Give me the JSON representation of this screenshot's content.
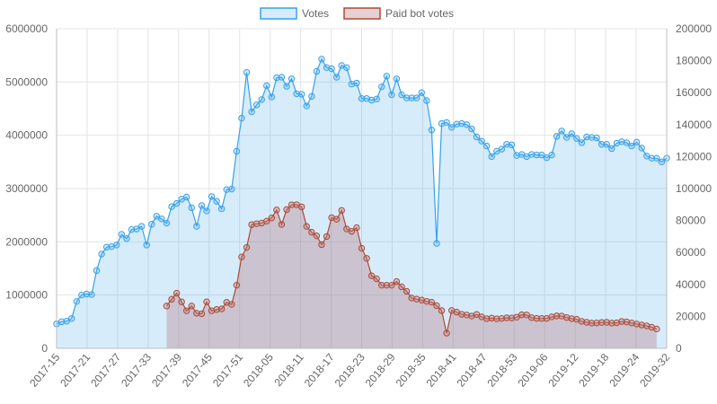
{
  "chart_data": {
    "type": "line",
    "title": "",
    "legend": {
      "position": "top",
      "entries": [
        "Votes",
        "Paid bot votes"
      ]
    },
    "grid": true,
    "x_tick_labels": [
      "2017-15",
      "2017-21",
      "2017-27",
      "2017-33",
      "2017-39",
      "2017-45",
      "2017-51",
      "2018-05",
      "2018-11",
      "2018-17",
      "2018-23",
      "2018-29",
      "2018-35",
      "2018-41",
      "2018-47",
      "2018-53",
      "2019-06",
      "2019-12",
      "2019-18",
      "2019-24",
      "2019-32"
    ],
    "x_first_week": "2017-15",
    "x_last_week": "2019-32",
    "y_left": {
      "min": 0,
      "max": 6000000,
      "step": 1000000,
      "ticks": [
        "0",
        "1000000",
        "2000000",
        "3000000",
        "4000000",
        "5000000",
        "6000000"
      ]
    },
    "y_right": {
      "min": 0,
      "max": 200000,
      "step": 20000,
      "ticks": [
        "0",
        "20000",
        "40000",
        "60000",
        "80000",
        "100000",
        "120000",
        "140000",
        "160000",
        "180000",
        "200000"
      ]
    },
    "series": [
      {
        "name": "Votes",
        "axis": "left",
        "color": "#36a2eb",
        "fill": "rgba(54,162,235,0.2)",
        "values": [
          460000,
          500000,
          510000,
          560000,
          880000,
          1000000,
          1020000,
          1010000,
          1460000,
          1770000,
          1900000,
          1910000,
          1940000,
          2140000,
          2060000,
          2230000,
          2240000,
          2290000,
          1940000,
          2330000,
          2480000,
          2430000,
          2350000,
          2660000,
          2720000,
          2800000,
          2840000,
          2640000,
          2290000,
          2680000,
          2580000,
          2850000,
          2760000,
          2620000,
          2980000,
          2990000,
          3700000,
          4320000,
          5180000,
          4440000,
          4570000,
          4670000,
          4930000,
          4720000,
          5080000,
          5090000,
          4920000,
          5060000,
          4780000,
          4770000,
          4550000,
          4730000,
          5200000,
          5430000,
          5270000,
          5250000,
          5090000,
          5310000,
          5270000,
          4960000,
          4980000,
          4690000,
          4690000,
          4660000,
          4680000,
          4910000,
          5110000,
          4760000,
          5060000,
          4760000,
          4700000,
          4700000,
          4700000,
          4800000,
          4650000,
          4100000,
          1970000,
          4220000,
          4240000,
          4150000,
          4210000,
          4220000,
          4200000,
          4120000,
          3970000,
          3890000,
          3800000,
          3600000,
          3700000,
          3740000,
          3830000,
          3820000,
          3620000,
          3640000,
          3600000,
          3640000,
          3630000,
          3630000,
          3580000,
          3630000,
          3980000,
          4080000,
          3960000,
          4030000,
          3940000,
          3860000,
          3970000,
          3960000,
          3950000,
          3830000,
          3830000,
          3750000,
          3850000,
          3880000,
          3860000,
          3800000,
          3870000,
          3760000,
          3610000,
          3570000,
          3570000,
          3500000,
          3570000
        ]
      },
      {
        "name": "Paid bot votes",
        "axis": "right",
        "color": "#b04a30",
        "fill": "rgba(180,120,130,0.35)",
        "values": [
          null,
          null,
          null,
          null,
          null,
          null,
          null,
          null,
          null,
          null,
          null,
          null,
          null,
          null,
          null,
          null,
          null,
          null,
          null,
          null,
          null,
          null,
          26500,
          30700,
          34500,
          29100,
          23500,
          26500,
          22000,
          21600,
          29100,
          23500,
          24300,
          24700,
          28800,
          27500,
          39500,
          57200,
          63100,
          77400,
          78000,
          78400,
          79600,
          81600,
          86600,
          77500,
          86800,
          89800,
          89900,
          88500,
          76300,
          72700,
          70400,
          64900,
          70000,
          81800,
          80800,
          86300,
          74700,
          73200,
          75500,
          62600,
          56300,
          45400,
          43500,
          39500,
          39500,
          39500,
          41800,
          38500,
          35700,
          31500,
          30800,
          30200,
          29400,
          28900,
          26700,
          23600,
          9500,
          23700,
          22700,
          21300,
          20900,
          20200,
          21200,
          19700,
          18600,
          18900,
          18500,
          18700,
          19100,
          19000,
          19500,
          21000,
          20900,
          19200,
          18700,
          18700,
          18700,
          19700,
          20300,
          20200,
          19300,
          18600,
          18200,
          16900,
          16300,
          15800,
          15900,
          16200,
          16300,
          15800,
          16000,
          16800,
          16500,
          15900,
          15200,
          14600,
          14100,
          13200,
          12100,
          null,
          null
        ]
      }
    ]
  }
}
